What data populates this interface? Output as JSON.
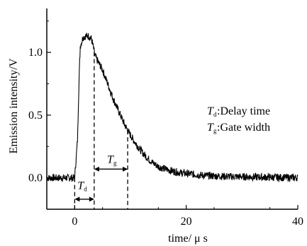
{
  "chart_data": {
    "type": "line",
    "title": "",
    "xlabel": "time/ μ s",
    "ylabel": "Emission intensity/V",
    "xlim": [
      -5,
      40
    ],
    "ylim": [
      -0.25,
      1.35
    ],
    "xticks": [
      0,
      20,
      40
    ],
    "yticks": [
      0.0,
      0.5,
      1.0
    ],
    "x_tick_labels": [
      "0",
      "20",
      "40"
    ],
    "y_tick_labels": [
      "0.0",
      "0.5",
      "1.0"
    ],
    "grid": false,
    "series": [
      {
        "x": [
          -5,
          -3,
          -1,
          0,
          0.5,
          0.8,
          1,
          1.5,
          2,
          2.5,
          3,
          3.3,
          3.6,
          4,
          4.5,
          5,
          6,
          7,
          8,
          9,
          10,
          11,
          12,
          13,
          14,
          15,
          17,
          19,
          21,
          23,
          25,
          28,
          31,
          34,
          37,
          40
        ],
        "y": [
          0.0,
          0.0,
          0.0,
          0.0,
          0.3,
          0.8,
          1.05,
          1.12,
          1.13,
          1.13,
          1.11,
          1.05,
          0.98,
          0.94,
          0.9,
          0.86,
          0.74,
          0.62,
          0.52,
          0.42,
          0.34,
          0.27,
          0.21,
          0.16,
          0.12,
          0.09,
          0.06,
          0.04,
          0.03,
          0.02,
          0.015,
          0.01,
          0.008,
          0.005,
          0.003,
          0.002
        ]
      }
    ],
    "annotations": [
      {
        "symbol": "T",
        "sub": "d",
        "text": ":Delay time",
        "x_start": 0,
        "x_end": 3.5
      },
      {
        "symbol": "T",
        "sub": "g",
        "text": ":Gate width",
        "x_start": 3.5,
        "x_end": 9.5
      }
    ]
  }
}
